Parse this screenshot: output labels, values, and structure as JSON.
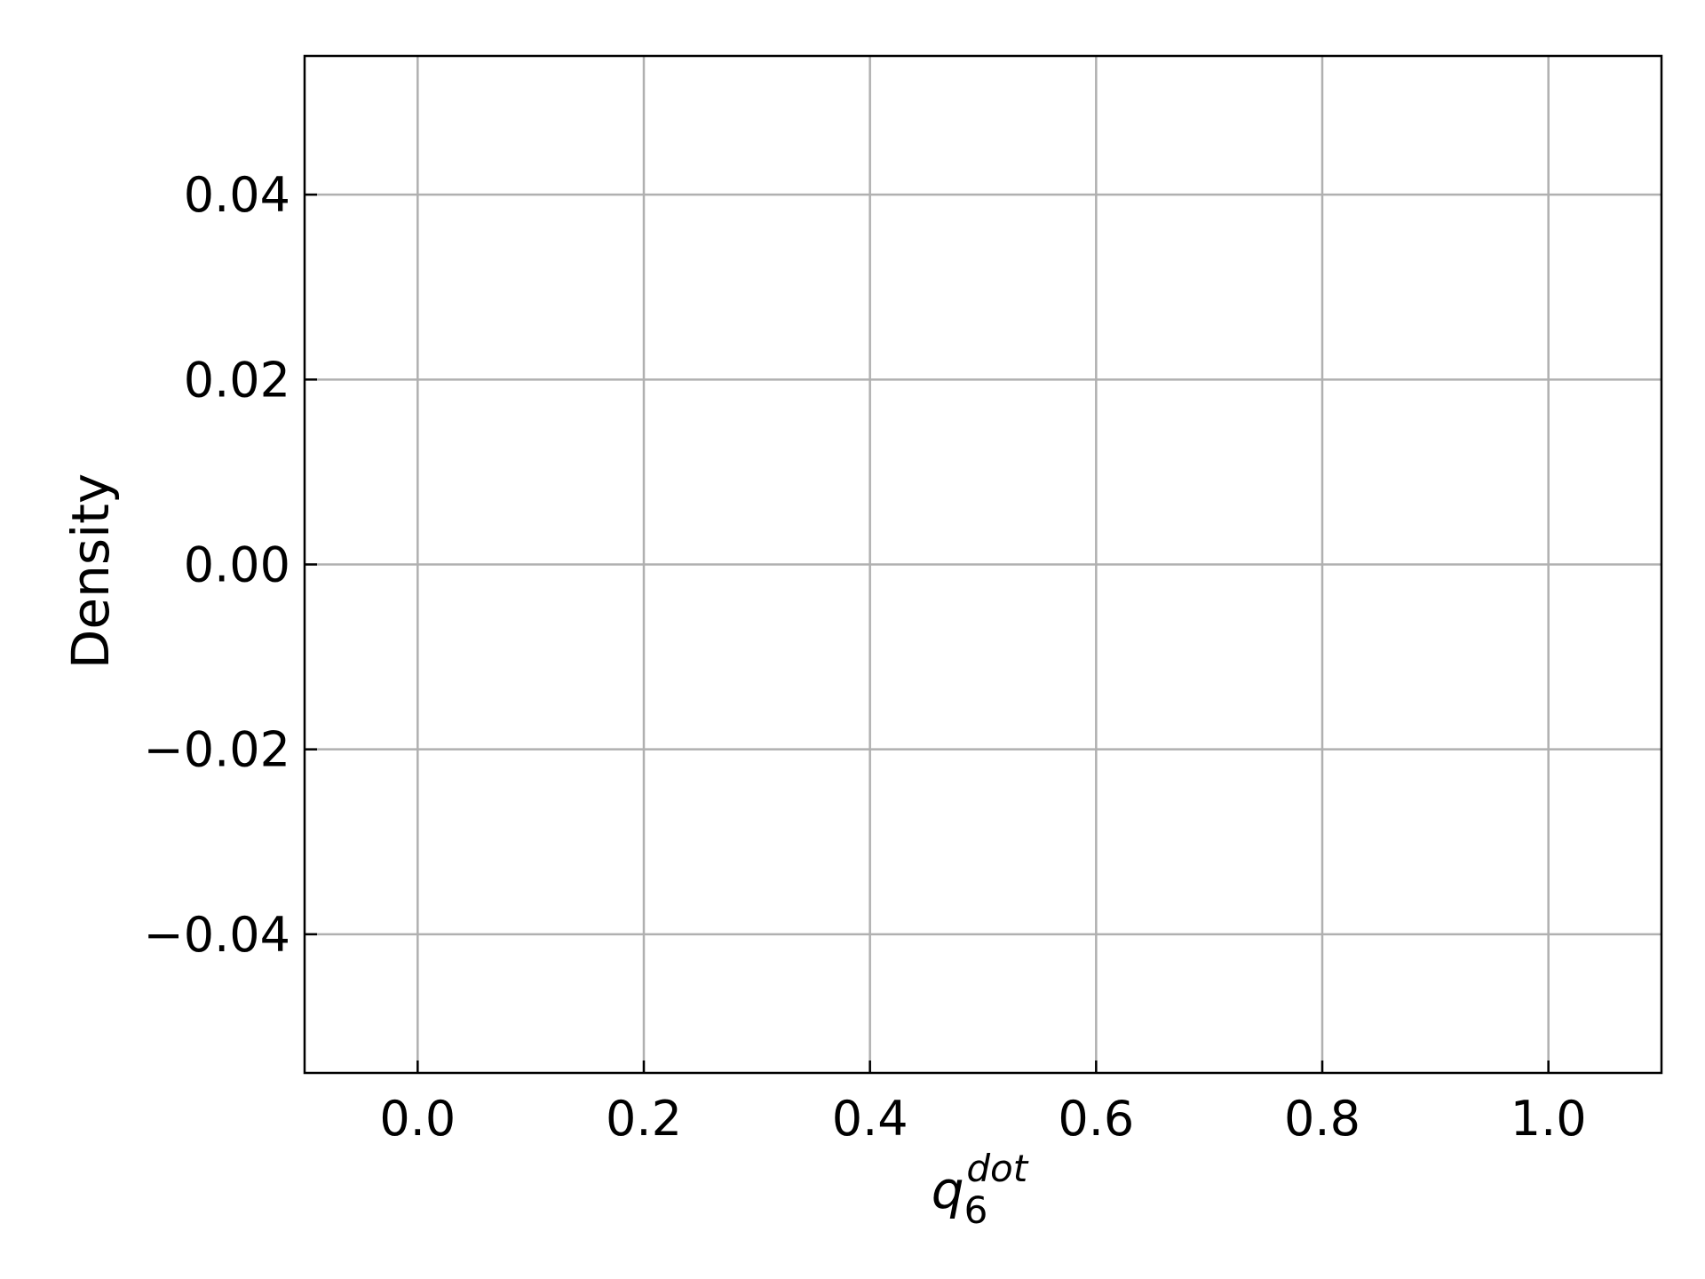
{
  "chart_data": {
    "type": "line",
    "title": "",
    "xlabel": {
      "base": "q",
      "subscript": "6",
      "superscript": "dot"
    },
    "ylabel": "Density",
    "xlim": [
      -0.1,
      1.1
    ],
    "ylim": [
      -0.055,
      0.055
    ],
    "xticks": [
      0.0,
      0.2,
      0.4,
      0.6,
      0.8,
      1.0
    ],
    "xtick_labels": [
      "0.0",
      "0.2",
      "0.4",
      "0.6",
      "0.8",
      "1.0"
    ],
    "yticks": [
      0.04,
      0.02,
      0.0,
      -0.02,
      -0.04
    ],
    "ytick_labels": [
      "0.04",
      "0.02",
      "0.00",
      "−0.02",
      "−0.04"
    ],
    "grid": true,
    "tick_direction": "in",
    "series": [],
    "colors": {
      "grid": "#b0b0b0",
      "axes": "#000000",
      "text": "#000000",
      "background": "#ffffff"
    }
  }
}
